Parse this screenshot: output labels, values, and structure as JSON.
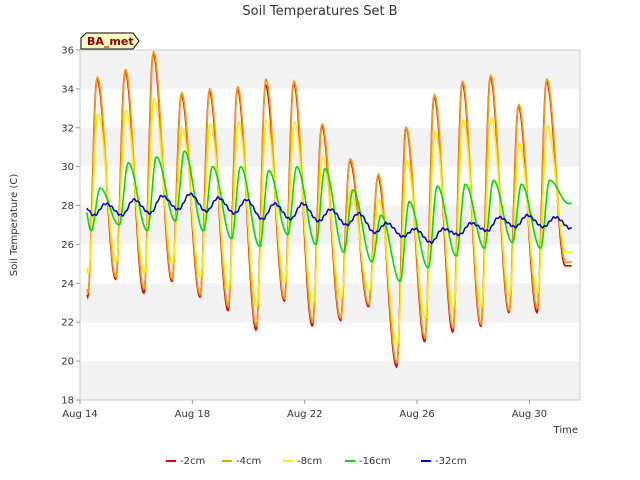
{
  "chart_data": {
    "type": "line",
    "title": "Soil Temperatures Set B",
    "xlabel": "Time",
    "ylabel": "Soil Temperature (C)",
    "badge": "BA_met",
    "ylim": [
      18,
      36
    ],
    "yticks": [
      18,
      20,
      22,
      24,
      26,
      28,
      30,
      32,
      34,
      36
    ],
    "xlim": [
      0,
      17.8
    ],
    "xticks": [
      {
        "value": 0,
        "label": "Aug 14"
      },
      {
        "value": 4,
        "label": "Aug 18"
      },
      {
        "value": 8,
        "label": "Aug 22"
      },
      {
        "value": 12,
        "label": "Aug 26"
      },
      {
        "value": 16,
        "label": "Aug 30"
      }
    ],
    "x_unit": "days since Aug 14",
    "grid": "horizontal bands",
    "legend_position": "bottom",
    "daily_max_min": {
      "days": [
        14,
        15,
        16,
        17,
        18,
        19,
        20,
        21,
        22,
        23,
        24,
        25,
        26,
        27,
        28,
        29,
        30,
        31
      ],
      "-2cm": {
        "max": [
          34.5,
          34.9,
          35.8,
          33.7,
          33.9,
          34.0,
          34.2,
          34.3,
          32.1,
          30.3,
          29.5,
          32.0,
          33.6,
          34.3,
          34.6,
          33.1,
          34.4,
          null
        ],
        "min": [
          23.3,
          24.2,
          23.5,
          24.1,
          23.3,
          22.6,
          21.6,
          23.1,
          21.8,
          22.1,
          22.8,
          19.7,
          21.0,
          21.5,
          21.8,
          22.5,
          22.5,
          24.9
        ]
      },
      "-4cm": {
        "max": [
          34.6,
          35.0,
          35.9,
          33.8,
          34.0,
          34.1,
          34.5,
          34.4,
          32.2,
          30.4,
          29.6,
          32.0,
          33.7,
          34.4,
          34.7,
          33.2,
          34.5,
          null
        ],
        "min": [
          23.5,
          24.3,
          23.7,
          24.2,
          23.4,
          22.8,
          21.8,
          23.2,
          22.0,
          22.2,
          22.9,
          19.9,
          21.2,
          21.7,
          21.9,
          22.6,
          22.7,
          25.1
        ]
      },
      "-8cm": {
        "max": [
          32.7,
          32.9,
          33.5,
          32.0,
          32.2,
          32.3,
          32.4,
          32.3,
          30.5,
          28.8,
          28.3,
          30.3,
          31.8,
          32.4,
          32.5,
          31.2,
          32.1,
          null
        ],
        "min": [
          24.5,
          25.1,
          24.5,
          25.0,
          24.3,
          23.7,
          22.8,
          24.0,
          22.9,
          23.2,
          23.6,
          20.8,
          22.2,
          22.7,
          22.8,
          23.4,
          23.5,
          25.6
        ]
      },
      "-16cm": {
        "max": [
          28.9,
          30.2,
          30.5,
          30.8,
          30.0,
          30.0,
          29.8,
          30.0,
          29.9,
          28.8,
          27.5,
          28.2,
          29.0,
          29.1,
          29.3,
          29.1,
          29.3,
          null
        ],
        "min": [
          26.7,
          27.0,
          26.7,
          27.2,
          26.7,
          26.3,
          25.9,
          26.5,
          26.0,
          25.6,
          25.1,
          24.1,
          24.8,
          25.4,
          25.8,
          26.1,
          25.8,
          28.1
        ]
      },
      "-32cm": {
        "max": [
          28.1,
          28.3,
          28.5,
          28.6,
          28.4,
          28.3,
          28.1,
          28.1,
          27.8,
          27.6,
          27.1,
          26.8,
          26.8,
          27.1,
          27.4,
          27.5,
          27.4,
          27.3
        ],
        "min": [
          27.5,
          27.5,
          27.6,
          27.8,
          27.7,
          27.6,
          27.3,
          27.3,
          27.2,
          27.0,
          26.6,
          26.4,
          26.1,
          26.5,
          26.7,
          26.9,
          26.9,
          26.8
        ]
      }
    },
    "series": [
      {
        "name": "-2cm",
        "color": "#dd0000"
      },
      {
        "name": "-4cm",
        "color": "#ff9900"
      },
      {
        "name": "-8cm",
        "color": "#ffee00"
      },
      {
        "name": "-16cm",
        "color": "#00dd00"
      },
      {
        "name": "-32cm",
        "color": "#0000cc"
      }
    ]
  }
}
